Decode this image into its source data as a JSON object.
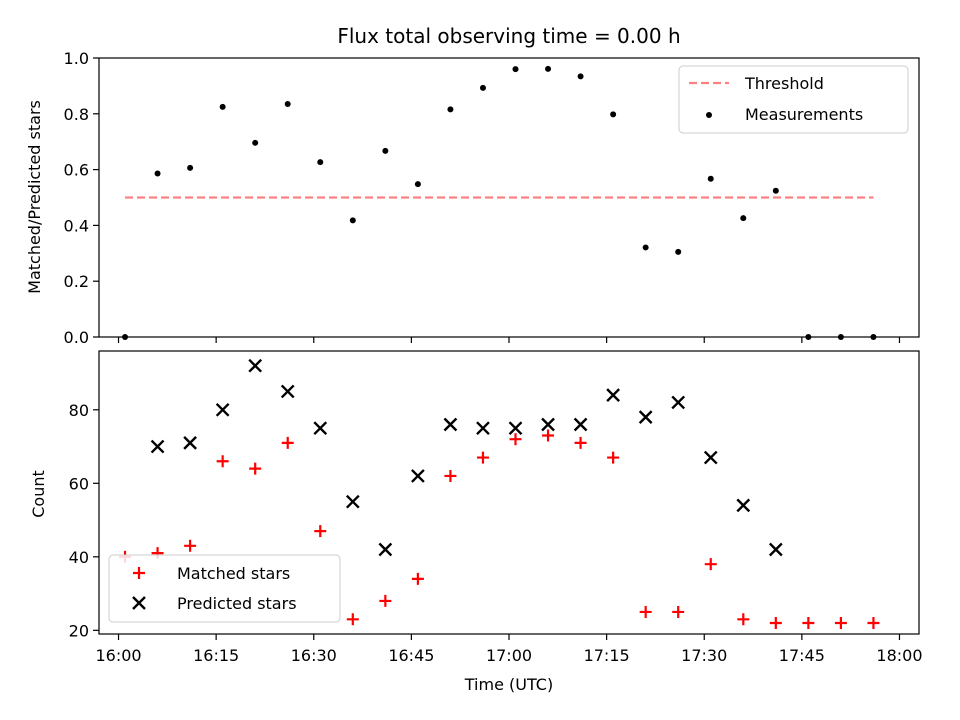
{
  "chart_data": [
    {
      "type": "scatter",
      "title": "Flux total observing time = 0.00 h",
      "xlabel": "",
      "ylabel": "Matched/Predicted stars",
      "xlim": [
        "15:57",
        "18:03"
      ],
      "ylim": [
        0,
        1.0
      ],
      "yticks": [
        "0.0",
        "0.2",
        "0.4",
        "0.6",
        "0.8",
        "1.0"
      ],
      "grid": false,
      "legend_position": "top-right",
      "threshold": {
        "name": "Threshold",
        "color": "#ff8080",
        "style": "dashed",
        "value": 0.5,
        "x_start": "16:01",
        "x_end": "17:56"
      },
      "measurements": {
        "name": "Measurements",
        "color": "#000000",
        "x": [
          "16:01",
          "16:06",
          "16:11",
          "16:16",
          "16:21",
          "16:26",
          "16:31",
          "16:36",
          "16:41",
          "16:46",
          "16:51",
          "16:56",
          "17:01",
          "17:06",
          "17:11",
          "17:16",
          "17:21",
          "17:26",
          "17:31",
          "17:36",
          "17:41",
          "17:46",
          "17:51",
          "17:56"
        ],
        "y": [
          0.0,
          0.586,
          0.606,
          0.825,
          0.696,
          0.835,
          0.627,
          0.418,
          0.667,
          0.548,
          0.816,
          0.893,
          0.96,
          0.961,
          0.934,
          0.798,
          0.321,
          0.305,
          0.567,
          0.426,
          0.524,
          0.0,
          0.0,
          0.0
        ]
      }
    },
    {
      "type": "scatter",
      "title": "",
      "xlabel": "Time (UTC)",
      "ylabel": "Count",
      "xlim": [
        "15:57",
        "18:03"
      ],
      "ylim": [
        19,
        96
      ],
      "xticks": [
        "16:00",
        "16:15",
        "16:30",
        "16:45",
        "17:00",
        "17:15",
        "17:30",
        "17:45",
        "18:00"
      ],
      "yticks": [
        "20",
        "40",
        "60",
        "80"
      ],
      "grid": false,
      "legend_position": "bottom-left",
      "series": [
        {
          "name": "Matched stars",
          "marker": "plus",
          "color": "#ff0000",
          "x": [
            "16:01",
            "16:06",
            "16:11",
            "16:16",
            "16:21",
            "16:26",
            "16:31",
            "16:36",
            "16:41",
            "16:46",
            "16:51",
            "16:56",
            "17:01",
            "17:06",
            "17:11",
            "17:16",
            "17:21",
            "17:26",
            "17:31",
            "17:36",
            "17:41",
            "17:46",
            "17:51",
            "17:56"
          ],
          "y": [
            40,
            41,
            43,
            66,
            64,
            71,
            47,
            23,
            28,
            34,
            62,
            67,
            72,
            73,
            71,
            67,
            25,
            25,
            38,
            23,
            22,
            22,
            22,
            22
          ]
        },
        {
          "name": "Predicted stars",
          "marker": "x",
          "color": "#000000",
          "x": [
            "16:06",
            "16:11",
            "16:16",
            "16:21",
            "16:26",
            "16:31",
            "16:36",
            "16:41",
            "16:46",
            "16:51",
            "16:56",
            "17:01",
            "17:06",
            "17:11",
            "17:16",
            "17:21",
            "17:26",
            "17:31",
            "17:36",
            "17:41"
          ],
          "y": [
            70,
            71,
            80,
            92,
            85,
            75,
            55,
            42,
            62,
            76,
            75,
            75,
            76,
            76,
            84,
            78,
            82,
            67,
            54,
            42
          ]
        }
      ]
    }
  ]
}
